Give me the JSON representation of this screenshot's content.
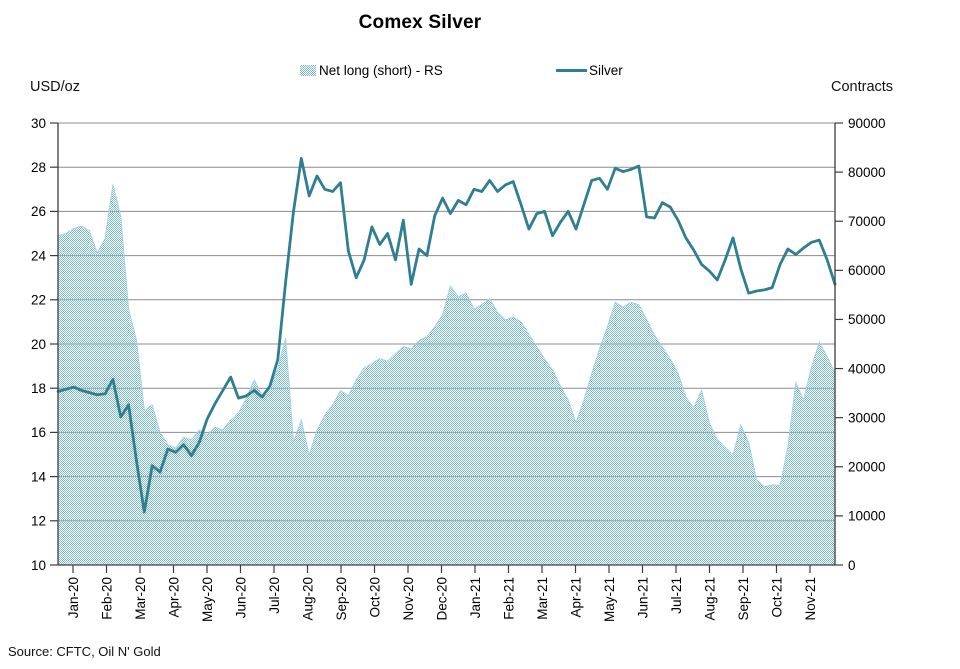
{
  "title": "Comex Silver",
  "source": "Source: CFTC, Oil N' Gold",
  "left_axis": {
    "label": "USD/oz",
    "min": 10,
    "max": 30,
    "step": 2
  },
  "right_axis": {
    "label": "Contracts",
    "min": 0,
    "max": 90000,
    "step": 10000
  },
  "legend": [
    {
      "label": "Net long (short) - RS",
      "type": "area",
      "color": "#b9dce8"
    },
    {
      "label": "Silver",
      "type": "line",
      "color": "#2f7e91"
    }
  ],
  "colors": {
    "area_pattern": "#7cbed2",
    "area_edge": "#a5d3e2",
    "line": "#2f7e91",
    "grid": "#8c8c8c",
    "axis": "#3d3d3d",
    "text": "#000000"
  },
  "chart_data": {
    "type": "combo",
    "x_unit": "weekly observations, Jan-2020 through Nov-2021",
    "categories": [
      "Jan-20",
      "Feb-20",
      "Mar-20",
      "Apr-20",
      "May-20",
      "Jun-20",
      "Jul-20",
      "Aug-20",
      "Sep-20",
      "Oct-20",
      "Nov-20",
      "Dec-20",
      "Jan-21",
      "Feb-21",
      "Mar-21",
      "Apr-21",
      "May-21",
      "Jun-21",
      "Jul-21",
      "Aug-21",
      "Sep-21",
      "Oct-21",
      "Nov-21"
    ],
    "grid": true,
    "legend_position": "top",
    "series": [
      {
        "name": "Net long (short) - RS",
        "type": "area",
        "axis": "right",
        "ylim": [
          0,
          90000
        ],
        "values": [
          67000,
          67500,
          68500,
          69000,
          68000,
          63500,
          66500,
          77500,
          71000,
          52000,
          45800,
          31500,
          32600,
          27000,
          24500,
          23800,
          26000,
          25500,
          27500,
          26500,
          28000,
          27500,
          29500,
          31000,
          34000,
          37700,
          34500,
          36000,
          40000,
          46200,
          25000,
          29500,
          22400,
          27500,
          30500,
          32600,
          35500,
          34500,
          37700,
          40100,
          41000,
          42000,
          41500,
          43000,
          44500,
          44000,
          45700,
          46500,
          48500,
          51000,
          56800,
          54600,
          55400,
          52100,
          53000,
          54200,
          51500,
          49900,
          50500,
          49500,
          47000,
          44400,
          42000,
          39700,
          36500,
          33600,
          29000,
          33500,
          39000,
          44000,
          48500,
          53500,
          52500,
          53500,
          53000,
          50000,
          46800,
          44400,
          42000,
          39100,
          34200,
          32000,
          35600,
          28900,
          25500,
          24000,
          22400,
          28500,
          25000,
          17300,
          15900,
          16300,
          16200,
          24000,
          37100,
          33600,
          40300,
          45400,
          42400,
          39100
        ]
      },
      {
        "name": "Silver",
        "type": "line",
        "axis": "left",
        "ylim": [
          10,
          30
        ],
        "values": [
          17.85,
          17.95,
          18.05,
          17.9,
          17.8,
          17.7,
          17.75,
          18.4,
          16.7,
          17.25,
          14.7,
          12.4,
          14.5,
          14.2,
          15.25,
          15.1,
          15.45,
          14.95,
          15.55,
          16.6,
          17.3,
          17.9,
          18.5,
          17.55,
          17.65,
          17.9,
          17.6,
          18.1,
          19.3,
          22.8,
          26.0,
          28.4,
          26.7,
          27.6,
          27.0,
          26.9,
          27.3,
          24.2,
          23.0,
          23.8,
          25.3,
          24.5,
          25.0,
          23.8,
          25.6,
          22.7,
          24.3,
          24.0,
          25.8,
          26.6,
          25.9,
          26.5,
          26.3,
          27.0,
          26.9,
          27.4,
          26.9,
          27.2,
          27.35,
          26.3,
          25.2,
          25.9,
          26.0,
          24.9,
          25.5,
          26.0,
          25.2,
          26.3,
          27.4,
          27.5,
          27.0,
          27.95,
          27.8,
          27.9,
          28.05,
          25.75,
          25.7,
          26.4,
          26.2,
          25.6,
          24.8,
          24.25,
          23.6,
          23.3,
          22.9,
          23.8,
          24.8,
          23.4,
          22.3,
          22.4,
          22.45,
          22.55,
          23.6,
          24.3,
          24.05,
          24.35,
          24.6,
          24.7,
          23.8,
          22.7
        ]
      }
    ]
  }
}
